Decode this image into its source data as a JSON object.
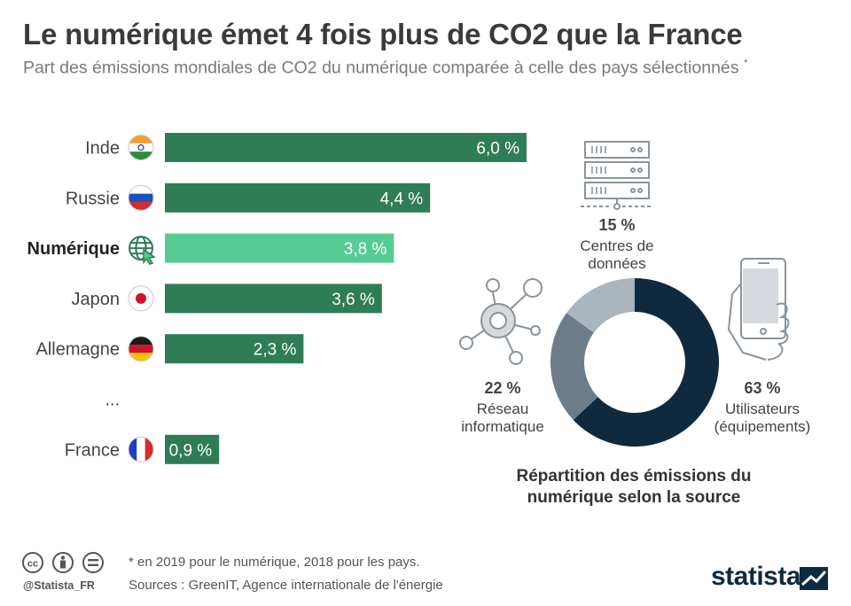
{
  "title": "Le numérique émet 4 fois plus de CO2 que la France",
  "subtitle": "Part des émissions mondiales de CO2 du numérique comparée à celle des pays sélectionnés",
  "subtitle_mark": "*",
  "chart_data": [
    {
      "type": "bar",
      "orientation": "horizontal",
      "categories": [
        "Inde",
        "Russie",
        "Numérique",
        "Japon",
        "Allemagne",
        "...",
        "France"
      ],
      "values": [
        6.0,
        4.4,
        3.8,
        3.6,
        2.3,
        null,
        0.9
      ],
      "value_labels": [
        "6,0 %",
        "4,4 %",
        "3,8 %",
        "3,6 %",
        "2,3 %",
        "",
        "0,9 %"
      ],
      "highlight": "Numérique",
      "colors": {
        "default": "#2f7d57",
        "highlight": "#56cc94"
      },
      "xlim": [
        0,
        6.0
      ],
      "grid": false
    },
    {
      "type": "pie",
      "donut": true,
      "title": "Répartition des émissions du numérique selon la source",
      "slices": [
        {
          "pct_label": "63 %",
          "value": 63,
          "label_lines": [
            "Utilisateurs",
            "(équipements)"
          ],
          "color": "#0f2a3f"
        },
        {
          "pct_label": "22 %",
          "value": 22,
          "label_lines": [
            "Réseau",
            "informatique"
          ],
          "color": "#6c7d89"
        },
        {
          "pct_label": "15 %",
          "value": 15,
          "label_lines": [
            "Centres de",
            "données"
          ],
          "color": "#aab5bd"
        }
      ]
    }
  ],
  "icons": {
    "flags": [
      "flag-india-icon",
      "flag-russia-icon",
      "globe-cursor-icon",
      "flag-japan-icon",
      "flag-germany-icon",
      "",
      "flag-france-icon"
    ],
    "segments": [
      "smartphone-hand-icon",
      "network-icon",
      "server-rack-icon"
    ]
  },
  "footer": {
    "note": "* en 2019 pour le numérique, 2018 pour les pays.",
    "sources": "Sources : GreenIT, Agence internationale de l'énergie",
    "handle": "@Statista_FR",
    "brand": "statista",
    "license_icons": [
      "cc-icon",
      "by-icon",
      "nd-icon"
    ]
  }
}
